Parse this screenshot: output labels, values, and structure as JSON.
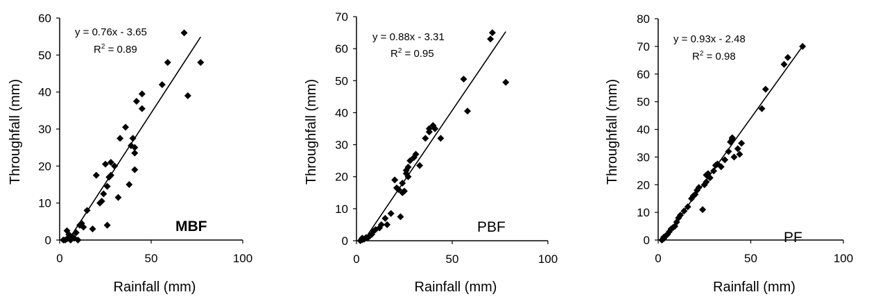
{
  "chart_data": [
    {
      "type": "scatter",
      "panel_label": "MBF",
      "xlabel": "Rainfall (mm)",
      "ylabel": "Throughfall (mm)",
      "xlim": [
        0,
        100
      ],
      "ylim": [
        0,
        60
      ],
      "xticks": [
        "0",
        "50",
        "100"
      ],
      "yticks": [
        "0",
        "10",
        "20",
        "30",
        "40",
        "50",
        "60"
      ],
      "equation": "y = 0.76x - 3.65",
      "r2_label": "R",
      "r2_value": " = 0.89",
      "fit": {
        "slope": 0.76,
        "intercept": -3.65,
        "x_range": [
          4.8,
          77
        ]
      },
      "points": [
        [
          2,
          0
        ],
        [
          3,
          0
        ],
        [
          4,
          0.3
        ],
        [
          5,
          0.5
        ],
        [
          6,
          0
        ],
        [
          4,
          2.5
        ],
        [
          5,
          1.5
        ],
        [
          7,
          1
        ],
        [
          8,
          0.5
        ],
        [
          10,
          0
        ],
        [
          9,
          2
        ],
        [
          11,
          4
        ],
        [
          12,
          4.5
        ],
        [
          13,
          3.5
        ],
        [
          15,
          8
        ],
        [
          18,
          3
        ],
        [
          20,
          17.5
        ],
        [
          22,
          10
        ],
        [
          23,
          10.5
        ],
        [
          24,
          12.5
        ],
        [
          25,
          20.5
        ],
        [
          26,
          14.5
        ],
        [
          26,
          4
        ],
        [
          27,
          17
        ],
        [
          28,
          17.5
        ],
        [
          28,
          21
        ],
        [
          30,
          20
        ],
        [
          32,
          11.5
        ],
        [
          33,
          27.5
        ],
        [
          36,
          30.5
        ],
        [
          38,
          15
        ],
        [
          39,
          25.5
        ],
        [
          40,
          27.5
        ],
        [
          41,
          19
        ],
        [
          41,
          23.5
        ],
        [
          41,
          25
        ],
        [
          42,
          37.5
        ],
        [
          45,
          35.5
        ],
        [
          45,
          39.5
        ],
        [
          56,
          42
        ],
        [
          59,
          48
        ],
        [
          68,
          56
        ],
        [
          70,
          39
        ],
        [
          77,
          48
        ]
      ]
    },
    {
      "type": "scatter",
      "panel_label": "PBF",
      "xlabel": "Rainfall (mm)",
      "ylabel": "Throughfall (mm)",
      "xlim": [
        0,
        100
      ],
      "ylim": [
        0,
        70
      ],
      "xticks": [
        "0",
        "50",
        "100"
      ],
      "yticks": [
        "0",
        "10",
        "20",
        "30",
        "40",
        "50",
        "60",
        "70"
      ],
      "equation": "y = 0.88x - 3.31",
      "r2_label": "R",
      "r2_value": " = 0.95",
      "fit": {
        "slope": 0.88,
        "intercept": -3.31,
        "x_range": [
          3.8,
          78
        ]
      },
      "points": [
        [
          2,
          0
        ],
        [
          3,
          0.3
        ],
        [
          3,
          0.8
        ],
        [
          4,
          0.5
        ],
        [
          5,
          1
        ],
        [
          6,
          1
        ],
        [
          7,
          1.5
        ],
        [
          8,
          2
        ],
        [
          9,
          3
        ],
        [
          10,
          3.5
        ],
        [
          12,
          4
        ],
        [
          13,
          5
        ],
        [
          15,
          7
        ],
        [
          16,
          5
        ],
        [
          18,
          8.5
        ],
        [
          20,
          19
        ],
        [
          21,
          16.5
        ],
        [
          22,
          16
        ],
        [
          23,
          7.5
        ],
        [
          24,
          15
        ],
        [
          24,
          18
        ],
        [
          25,
          15.5
        ],
        [
          26,
          21
        ],
        [
          26,
          22
        ],
        [
          27,
          20
        ],
        [
          27,
          23
        ],
        [
          28,
          25
        ],
        [
          30,
          26
        ],
        [
          31,
          27
        ],
        [
          33,
          23.5
        ],
        [
          36,
          32
        ],
        [
          38,
          34
        ],
        [
          38,
          35
        ],
        [
          40,
          36
        ],
        [
          41,
          35
        ],
        [
          44,
          32
        ],
        [
          56,
          50.5
        ],
        [
          58,
          40.5
        ],
        [
          70,
          63
        ],
        [
          71,
          65
        ],
        [
          78,
          49.5
        ]
      ]
    },
    {
      "type": "scatter",
      "panel_label": "PF",
      "xlabel": "Rainfall (mm)",
      "ylabel": "Throughfall (mm)",
      "xlim": [
        0,
        100
      ],
      "ylim": [
        0,
        80
      ],
      "xticks": [
        "0",
        "50",
        "100"
      ],
      "yticks": [
        "0",
        "10",
        "20",
        "30",
        "40",
        "50",
        "60",
        "70",
        "80"
      ],
      "equation": "y = 0.93x - 2.48",
      "r2_label": "R",
      "r2_value": " = 0.98",
      "fit": {
        "slope": 0.93,
        "intercept": -2.48,
        "x_range": [
          2.7,
          78
        ]
      },
      "points": [
        [
          2,
          0
        ],
        [
          3,
          0.5
        ],
        [
          3,
          1
        ],
        [
          4,
          1.5
        ],
        [
          5,
          2
        ],
        [
          6,
          3
        ],
        [
          7,
          4
        ],
        [
          8,
          4.5
        ],
        [
          9,
          5
        ],
        [
          10,
          6.5
        ],
        [
          11,
          8
        ],
        [
          12,
          9
        ],
        [
          14,
          10.5
        ],
        [
          16,
          12
        ],
        [
          18,
          15
        ],
        [
          19,
          16
        ],
        [
          20,
          16.5
        ],
        [
          21,
          18
        ],
        [
          22,
          19
        ],
        [
          24,
          11
        ],
        [
          25,
          20
        ],
        [
          26,
          21
        ],
        [
          26,
          23.5
        ],
        [
          27,
          24
        ],
        [
          28,
          22.5
        ],
        [
          30,
          25
        ],
        [
          31,
          27
        ],
        [
          32,
          27.5
        ],
        [
          34,
          26.5
        ],
        [
          36,
          29
        ],
        [
          38,
          32
        ],
        [
          39,
          35.5
        ],
        [
          40,
          37
        ],
        [
          40,
          36.5
        ],
        [
          41,
          30
        ],
        [
          43,
          33
        ],
        [
          44,
          31
        ],
        [
          45,
          35
        ],
        [
          56,
          47.5
        ],
        [
          58,
          54.5
        ],
        [
          68,
          63.5
        ],
        [
          70,
          66
        ],
        [
          78,
          70
        ]
      ]
    }
  ]
}
